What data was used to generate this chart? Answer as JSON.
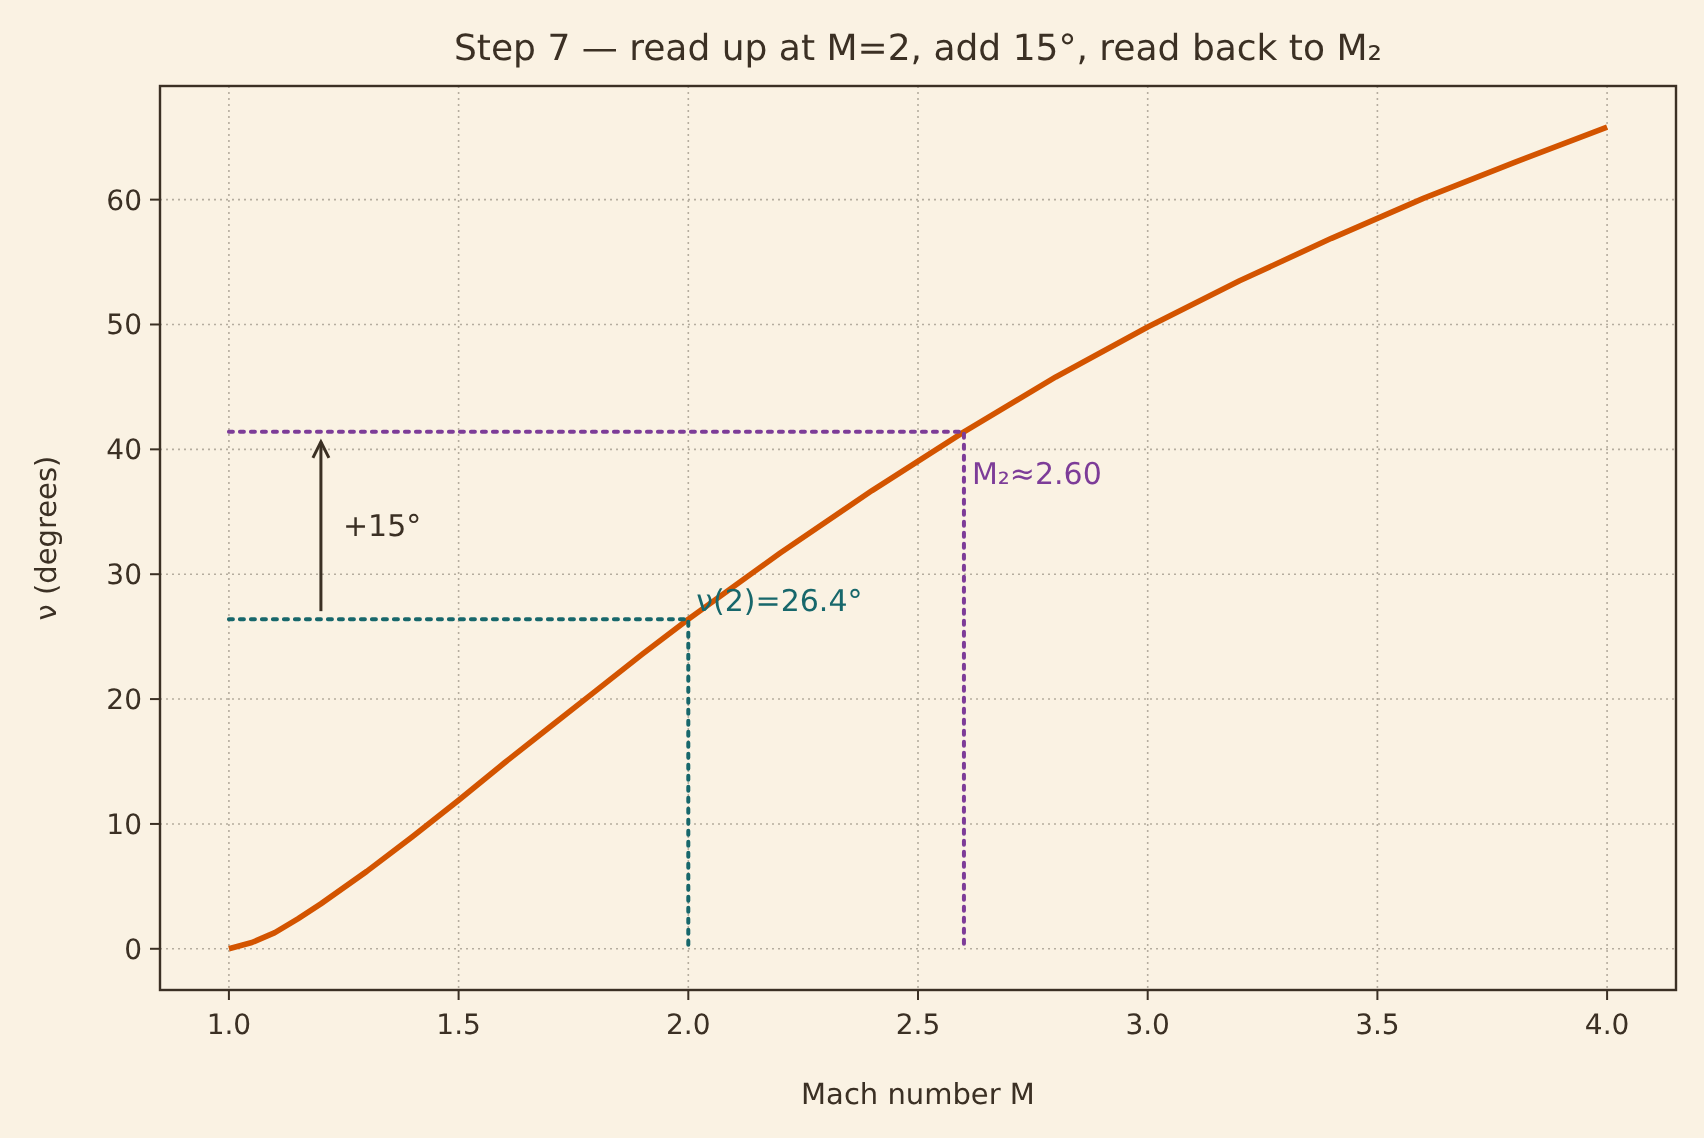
{
  "chart_data": {
    "type": "line",
    "title": "Step 7 — read up at M=2, add 15°, read back to M₂",
    "xlabel": "Mach number M",
    "ylabel": "ν (degrees)",
    "xlim": [
      0.85,
      4.15
    ],
    "xticks": [
      {
        "value": 1,
        "label": "1.0"
      },
      {
        "value": 1.5,
        "label": "1.5"
      },
      {
        "value": 2,
        "label": "2.0"
      },
      {
        "value": 2.5,
        "label": "2.5"
      },
      {
        "value": 3,
        "label": "3.0"
      },
      {
        "value": 3.5,
        "label": "3.5"
      },
      {
        "value": 4,
        "label": "4.0"
      }
    ],
    "ylim": [
      -3.3,
      69.1
    ],
    "yticks": [
      0,
      10,
      20,
      30,
      40,
      50,
      60
    ],
    "grid": true,
    "series": [
      {
        "color": "#d35400",
        "line_style": "solid",
        "x": [
          1.0,
          1.05,
          1.1,
          1.15,
          1.2,
          1.3,
          1.4,
          1.5,
          1.6,
          1.7,
          1.8,
          1.9,
          2.0,
          2.2,
          2.4,
          2.6,
          2.8,
          3.0,
          3.2,
          3.4,
          3.6,
          3.8,
          4.0
        ],
        "values": [
          0,
          0.5,
          1.3,
          2.4,
          3.6,
          6.2,
          9.0,
          11.9,
          14.9,
          17.8,
          20.7,
          23.6,
          26.4,
          31.7,
          36.7,
          41.4,
          45.8,
          49.8,
          53.5,
          56.9,
          60.1,
          63.0,
          65.8
        ]
      },
      {
        "color": "#17676b",
        "line_style": "dotted",
        "x": [
          1.0,
          2.0,
          2.0
        ],
        "values": [
          26.4,
          26.4,
          0
        ]
      },
      {
        "color": "#7d3c98",
        "line_style": "dotted",
        "x": [
          1.0,
          2.6,
          2.6
        ],
        "values": [
          41.4,
          41.4,
          0
        ]
      }
    ],
    "annotations": [
      {
        "text": "ν(2)=26.4°",
        "x": 2.0,
        "y": 26.4
      },
      {
        "text": "M₂≈2.60",
        "x": 2.6,
        "y": 41.4
      },
      "+15°"
    ]
  }
}
